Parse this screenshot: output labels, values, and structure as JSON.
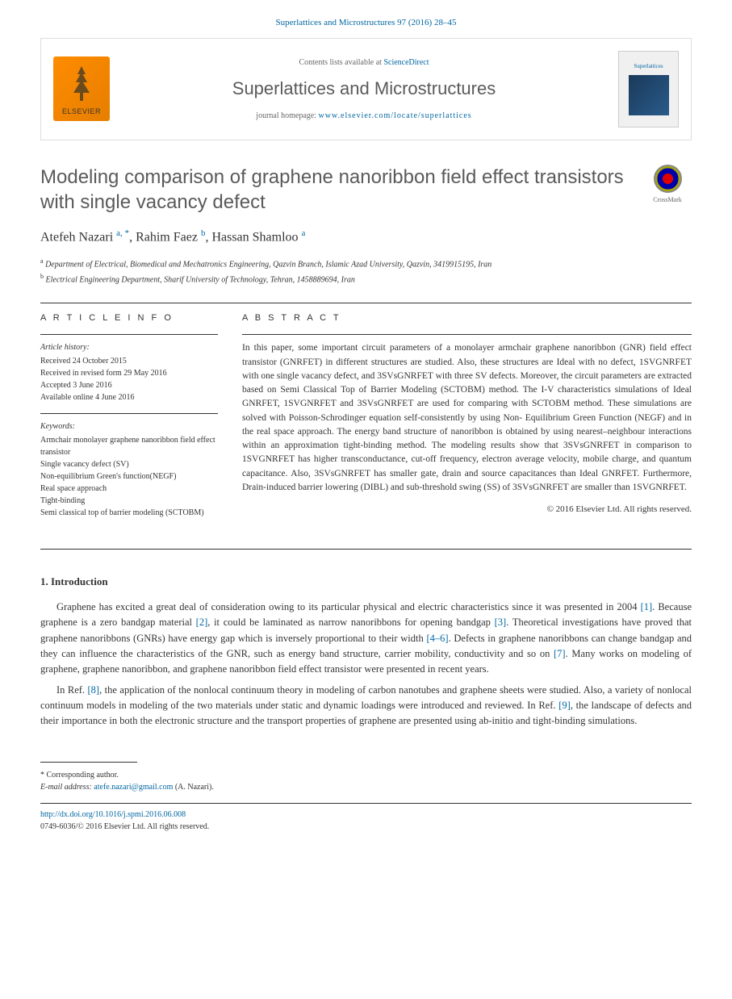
{
  "header": {
    "citation": "Superlattices and Microstructures 97 (2016) 28–45"
  },
  "masthead": {
    "publisher": "ELSEVIER",
    "contents_prefix": "Contents lists available at ",
    "contents_link": "ScienceDirect",
    "journal_name": "Superlattices and Microstructures",
    "homepage_prefix": "journal homepage: ",
    "homepage_url": "www.elsevier.com/locate/superlattices",
    "cover_text": "Superlattices"
  },
  "article": {
    "title": "Modeling comparison of graphene nanoribbon field effect transistors with single vacancy defect",
    "crossmark_label": "CrossMark",
    "authors_html": "Atefeh Nazari <sup>a, *</sup>, Rahim Faez <sup>b</sup>, Hassan Shamloo <sup>a</sup>",
    "affiliations": [
      {
        "sup": "a",
        "text": "Department of Electrical, Biomedical and Mechatronics Engineering, Qazvin Branch, Islamic Azad University, Qazvin, 3419915195, Iran"
      },
      {
        "sup": "b",
        "text": "Electrical Engineering Department, Sharif University of Technology, Tehran, 1458889694, Iran"
      }
    ]
  },
  "info": {
    "heading": "A R T I C L E   I N F O",
    "history_label": "Article history:",
    "history": [
      "Received 24 October 2015",
      "Received in revised form 29 May 2016",
      "Accepted 3 June 2016",
      "Available online 4 June 2016"
    ],
    "keywords_label": "Keywords:",
    "keywords": [
      "Armchair monolayer graphene nanoribbon field effect transistor",
      "Single vacancy defect (SV)",
      "Non-equilibrium Green's function(NEGF)",
      "Real space approach",
      "Tight-binding",
      "Semi classical top of barrier modeling (SCTOBM)"
    ]
  },
  "abstract": {
    "heading": "A B S T R A C T",
    "text": "In this paper, some important circuit parameters of a monolayer armchair graphene nanoribbon (GNR) field effect transistor (GNRFET) in different structures are studied. Also, these structures are Ideal with no defect, 1SVGNRFET with one single vacancy defect, and 3SVsGNRFET with three SV defects. Moreover, the circuit parameters are extracted based on Semi Classical Top of Barrier Modeling (SCTOBM) method. The I-V characteristics simulations of Ideal GNRFET, 1SVGNRFET and 3SVsGNRFET are used for comparing with SCTOBM method. These simulations are solved with Poisson-Schrodinger equation self-consistently by using Non- Equilibrium Green Function (NEGF) and in the real space approach. The energy band structure of nanoribbon is obtained by using nearest–neighbour interactions within an approximation tight-binding method. The modeling results show that 3SVsGNRFET in comparison to 1SVGNRFET has higher transconductance, cut-off frequency, electron average velocity, mobile charge, and quantum capacitance. Also, 3SVsGNRFET has smaller gate, drain and source capacitances than Ideal GNRFET. Furthermore, Drain-induced barrier lowering (DIBL) and sub-threshold swing (SS) of 3SVsGNRFET are smaller than 1SVGNRFET.",
    "copyright": "© 2016 Elsevier Ltd. All rights reserved."
  },
  "sections": {
    "intro_heading": "1. Introduction",
    "paragraphs": [
      "Graphene has excited a great deal of consideration owing to its particular physical and electric characteristics since it was presented in 2004 [1]. Because graphene is a zero bandgap material [2], it could be laminated as narrow nanoribbons for opening bandgap [3]. Theoretical investigations have proved that graphene nanoribbons (GNRs) have energy gap which is inversely proportional to their width [4–6]. Defects in graphene nanoribbons can change bandgap and they can influence the characteristics of the GNR, such as energy band structure, carrier mobility, conductivity and so on [7]. Many works on modeling of graphene, graphene nanoribbon, and graphene nanoribbon field effect transistor were presented in recent years.",
      "In Ref. [8], the application of the nonlocal continuum theory in modeling of carbon nanotubes and graphene sheets were studied. Also, a variety of nonlocal continuum models in modeling of the two materials under static and dynamic loadings were introduced and reviewed. In Ref. [9], the landscape of defects and their importance in both the electronic structure and the transport properties of graphene are presented using ab-initio and tight-binding simulations."
    ]
  },
  "footnote": {
    "corr_label": "* Corresponding author.",
    "email_label": "E-mail address: ",
    "email": "atefe.nazari@gmail.com",
    "email_suffix": " (A. Nazari)."
  },
  "footer": {
    "doi": "http://dx.doi.org/10.1016/j.spmi.2016.06.008",
    "issn": "0749-6036/© 2016 Elsevier Ltd. All rights reserved."
  },
  "refs": [
    "[1]",
    "[2]",
    "[3]",
    "[4–6]",
    "[7]",
    "[8]",
    "[9]"
  ]
}
